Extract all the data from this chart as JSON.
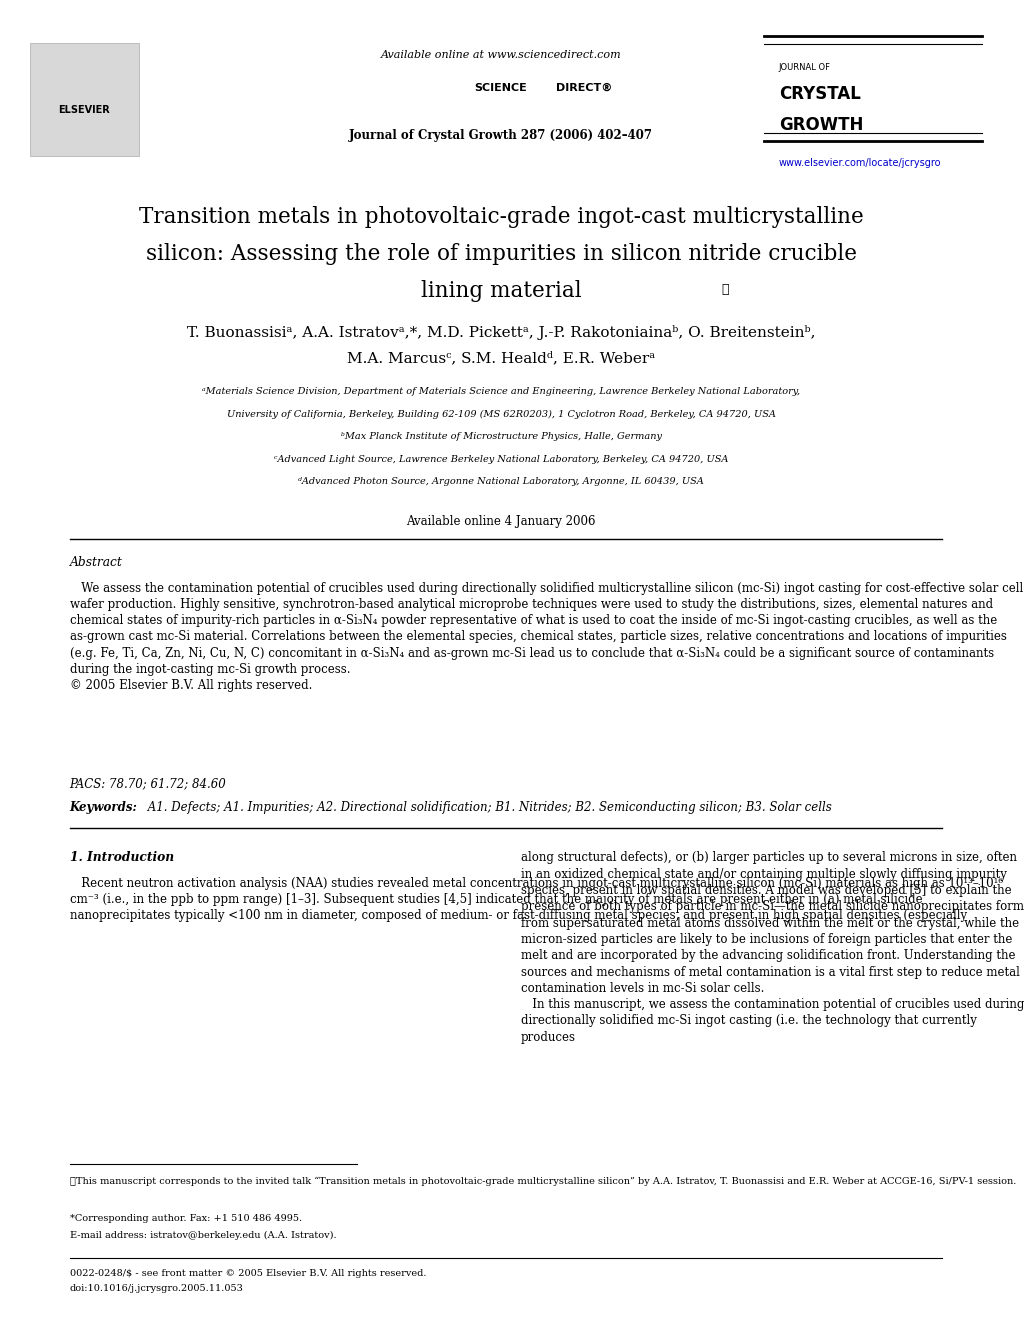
{
  "page_width": 9.92,
  "page_height": 13.23,
  "bg_color": "#ffffff",
  "header_available_online": "Available online at www.sciencedirect.com",
  "header_sciencedirect": "SCIENCE  direct",
  "header_journal_line": "Journal of Crystal Growth 287 (2006) 402–407",
  "header_website": "www.elsevier.com/locate/jcrysgro",
  "journal_of": "JOURNAL OF",
  "journal_crystal": "CRYSTAL",
  "journal_growth": "GROWTH",
  "title_line1": "Transition metals in photovoltaic-grade ingot-cast multicrystalline",
  "title_line2": "silicon: Assessing the role of impurities in silicon nitride crucible",
  "title_line3": "lining material",
  "title_star": "☆",
  "authors_line1": "T. Buonassisiᵃ, A.A. Istratovᵃ,*, M.D. Pickettᵃ, J.-P. Rakotoniainaᵇ, O. Breitensteinᵇ,",
  "authors_line2": "M.A. Marcusᶜ, S.M. Healdᵈ, E.R. Weberᵃ",
  "affiliations": [
    "ᵃMaterials Science Division, Department of Materials Science and Engineering, Lawrence Berkeley National Laboratory,",
    "University of California, Berkeley, Building 62-109 (MS 62R0203), 1 Cyclotron Road, Berkeley, CA 94720, USA",
    "ᵇMax Planck Institute of Microstructure Physics, Halle, Germany",
    "ᶜAdvanced Light Source, Lawrence Berkeley National Laboratory, Berkeley, CA 94720, USA",
    "ᵈAdvanced Photon Source, Argonne National Laboratory, Argonne, IL 60439, USA"
  ],
  "available_online_date": "Available online 4 January 2006",
  "abstract_heading": "Abstract",
  "abstract_text": "   We assess the contamination potential of crucibles used during directionally solidified multicrystalline silicon (mc-Si) ingot casting for cost-effective solar cell wafer production. Highly sensitive, synchrotron-based analytical microprobe techniques were used to study the distributions, sizes, elemental natures and chemical states of impurity-rich particles in α-Si₃N₄ powder representative of what is used to coat the inside of mc-Si ingot-casting crucibles, as well as the as-grown cast mc-Si material. Correlations between the elemental species, chemical states, particle sizes, relative concentrations and locations of impurities (e.g. Fe, Ti, Ca, Zn, Ni, Cu, N, C) concomitant in α-Si₃N₄ and as-grown mc-Si lead us to conclude that α-Si₃N₄ could be a significant source of contaminants during the ingot-casting mc-Si growth process.\n© 2005 Elsevier B.V. All rights reserved.",
  "pacs_text": "PACS: 78.70; 61.72; 84.60",
  "keywords_label": "Keywords:",
  "keywords_text": " A1. Defects; A1. Impurities; A2. Directional solidification; B1. Nitrides; B2. Semiconducting silicon; B3. Solar cells",
  "intro_heading": "1. Introduction",
  "intro_col1": "   Recent neutron activation analysis (NAA) studies revealed metal concentrations in ingot-cast multicrystalline silicon (mc-Si) materials as high as 10¹³–10¹⁶ cm⁻³ (i.e., in the ppb to ppm range) [1–3]. Subsequent studies [4,5] indicated that the majority of metals are present either in (a) metal silicide nanoprecipitates typically <100 nm in diameter, composed of medium- or fast-diffusing metal species, and present in high spatial densities (especially",
  "intro_col2": "along structural defects), or (b) larger particles up to several microns in size, often in an oxidized chemical state and/or containing multiple slowly diffusing impurity species, present in low spatial densities. A model was developed [5] to explain the presence of both types of particle in mc-Si—the metal silicide nanoprecipitates form from supersaturated metal atoms dissolved within the melt or the crystal, while the micron-sized particles are likely to be inclusions of foreign particles that enter the melt and are incorporated by the advancing solidification front. Understanding the sources and mechanisms of metal contamination is a vital first step to reduce metal contamination levels in mc-Si solar cells.\n   In this manuscript, we assess the contamination potential of crucibles used during directionally solidified mc-Si ingot casting (i.e. the technology that currently produces",
  "footnote_star_text": "☆This manuscript corresponds to the invited talk “Transition metals in photovoltaic-grade multicrystalline silicon” by A.A. Istratov, T. Buonassisi and E.R. Weber at ACCGE-16, Si/PV-1 session.",
  "footnote_corr": "*Corresponding author. Fax: +1 510 486 4995.",
  "footnote_email": "E-mail address: istratov@berkeley.edu (A.A. Istratov).",
  "footnote_bottom_line1": "0022-0248/$ - see front matter © 2005 Elsevier B.V. All rights reserved.",
  "footnote_bottom_line2": "doi:10.1016/j.jcrysgro.2005.11.053"
}
